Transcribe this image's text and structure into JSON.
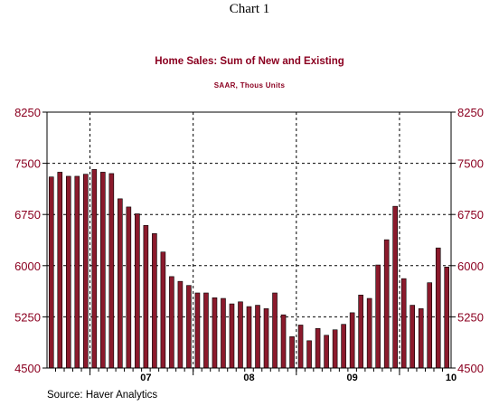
{
  "page": {
    "title": "Chart 1"
  },
  "chart_data": {
    "type": "bar",
    "title": "Home Sales: Sum of New and Existing",
    "subtitle": "SAAR, Thous Units",
    "source": "Source:  Haver Analytics",
    "xlabel": "",
    "ylabel": "",
    "ylim": [
      4500,
      8250
    ],
    "y_ticks": [
      "8250",
      "7500",
      "6750",
      "6000",
      "5250",
      "4500"
    ],
    "x_ticks": [
      "07",
      "08",
      "09",
      "10"
    ],
    "grid": true,
    "bar_color": "#8b1a2c",
    "series": [
      {
        "values": [
          7300,
          7370,
          7310,
          7310,
          7340,
          7410,
          7370,
          7350,
          6980,
          6860,
          6760,
          6590,
          6470,
          6200,
          5840,
          5770,
          5710,
          5600,
          5600,
          5530,
          5520,
          5440,
          5470,
          5400,
          5420,
          5370,
          5600,
          5280,
          4960,
          5130,
          4900,
          5080,
          4980,
          5060,
          5140,
          5310,
          5570,
          5520,
          6010,
          6380,
          6870,
          5810,
          5420,
          5370,
          5750,
          6260,
          5980
        ]
      }
    ]
  }
}
